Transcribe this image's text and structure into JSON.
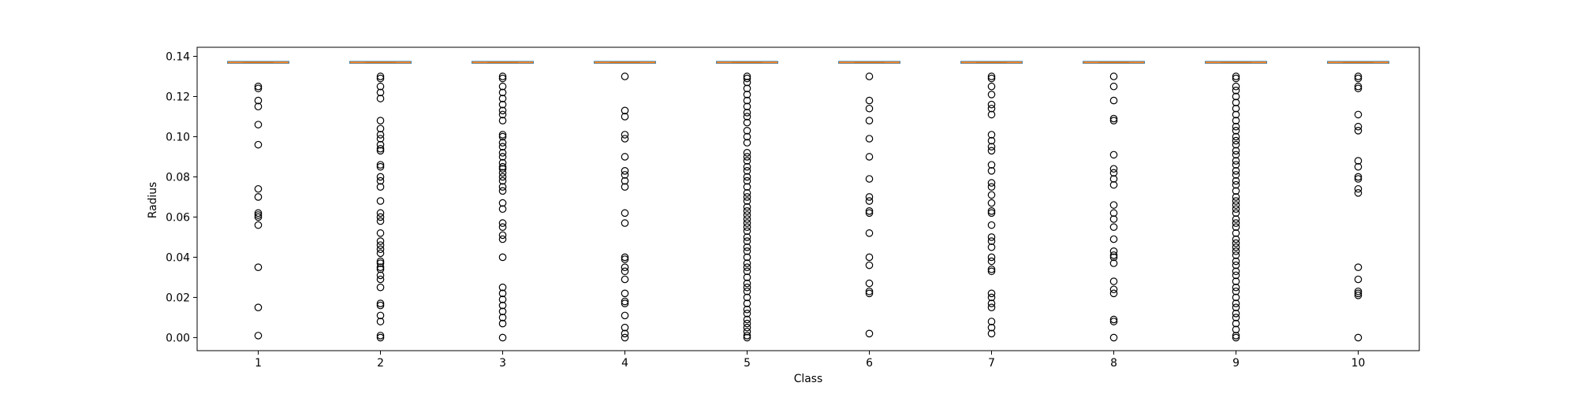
{
  "chart_data": {
    "type": "box",
    "title": "",
    "xlabel": "Class",
    "ylabel": "Radius",
    "ylim": [
      -0.0065,
      0.1445
    ],
    "yticks": [
      0.0,
      0.02,
      0.04,
      0.06,
      0.08,
      0.1,
      0.12,
      0.14
    ],
    "ytick_labels": [
      "0.00",
      "0.02",
      "0.04",
      "0.06",
      "0.08",
      "0.10",
      "0.12",
      "0.14"
    ],
    "categories": [
      "1",
      "2",
      "3",
      "4",
      "5",
      "6",
      "7",
      "8",
      "9",
      "10"
    ],
    "grid": false,
    "colors": {
      "box": "#1f77b4",
      "median": "#ff7f0e",
      "flier_edge": "#000000",
      "axes": "#000000"
    },
    "boxes": [
      {
        "label": "1",
        "median": 0.137,
        "q1": 0.137,
        "q3": 0.137,
        "whisker_low": 0.137,
        "whisker_high": 0.137,
        "fliers": [
          0.125,
          0.124,
          0.118,
          0.115,
          0.106,
          0.096,
          0.074,
          0.07,
          0.062,
          0.061,
          0.06,
          0.056,
          0.035,
          0.015,
          0.001
        ]
      },
      {
        "label": "2",
        "median": 0.137,
        "q1": 0.137,
        "q3": 0.137,
        "whisker_low": 0.137,
        "whisker_high": 0.137,
        "fliers": [
          0.13,
          0.129,
          0.125,
          0.122,
          0.119,
          0.108,
          0.104,
          0.101,
          0.099,
          0.096,
          0.094,
          0.093,
          0.086,
          0.085,
          0.08,
          0.078,
          0.075,
          0.068,
          0.062,
          0.06,
          0.058,
          0.052,
          0.048,
          0.046,
          0.044,
          0.042,
          0.038,
          0.037,
          0.035,
          0.034,
          0.031,
          0.029,
          0.025,
          0.017,
          0.016,
          0.011,
          0.008,
          0.001,
          0.0
        ]
      },
      {
        "label": "3",
        "median": 0.137,
        "q1": 0.137,
        "q3": 0.137,
        "whisker_low": 0.137,
        "whisker_high": 0.137,
        "fliers": [
          0.13,
          0.129,
          0.125,
          0.122,
          0.119,
          0.116,
          0.113,
          0.111,
          0.108,
          0.101,
          0.1,
          0.097,
          0.095,
          0.092,
          0.09,
          0.087,
          0.085,
          0.084,
          0.082,
          0.08,
          0.078,
          0.075,
          0.073,
          0.067,
          0.064,
          0.057,
          0.055,
          0.051,
          0.049,
          0.04,
          0.025,
          0.022,
          0.019,
          0.016,
          0.013,
          0.01,
          0.007,
          0.0
        ]
      },
      {
        "label": "4",
        "median": 0.137,
        "q1": 0.137,
        "q3": 0.137,
        "whisker_low": 0.137,
        "whisker_high": 0.137,
        "fliers": [
          0.13,
          0.113,
          0.11,
          0.101,
          0.099,
          0.09,
          0.083,
          0.081,
          0.078,
          0.075,
          0.062,
          0.057,
          0.04,
          0.039,
          0.035,
          0.033,
          0.029,
          0.022,
          0.018,
          0.017,
          0.011,
          0.005,
          0.002,
          0.0
        ]
      },
      {
        "label": "5",
        "median": 0.137,
        "q1": 0.137,
        "q3": 0.137,
        "whisker_low": 0.137,
        "whisker_high": 0.137,
        "fliers": [
          0.13,
          0.129,
          0.127,
          0.124,
          0.121,
          0.118,
          0.115,
          0.112,
          0.11,
          0.107,
          0.103,
          0.1,
          0.097,
          0.092,
          0.09,
          0.088,
          0.085,
          0.083,
          0.08,
          0.078,
          0.075,
          0.072,
          0.07,
          0.068,
          0.065,
          0.063,
          0.061,
          0.059,
          0.057,
          0.055,
          0.053,
          0.05,
          0.048,
          0.045,
          0.043,
          0.04,
          0.037,
          0.035,
          0.033,
          0.03,
          0.027,
          0.025,
          0.023,
          0.02,
          0.017,
          0.014,
          0.012,
          0.009,
          0.007,
          0.005,
          0.003,
          0.001,
          0.0
        ]
      },
      {
        "label": "6",
        "median": 0.137,
        "q1": 0.137,
        "q3": 0.137,
        "whisker_low": 0.137,
        "whisker_high": 0.137,
        "fliers": [
          0.13,
          0.118,
          0.114,
          0.108,
          0.099,
          0.09,
          0.079,
          0.07,
          0.068,
          0.063,
          0.062,
          0.052,
          0.04,
          0.036,
          0.027,
          0.023,
          0.022,
          0.002
        ]
      },
      {
        "label": "7",
        "median": 0.137,
        "q1": 0.137,
        "q3": 0.137,
        "whisker_low": 0.137,
        "whisker_high": 0.137,
        "fliers": [
          0.13,
          0.129,
          0.125,
          0.121,
          0.116,
          0.114,
          0.111,
          0.101,
          0.098,
          0.095,
          0.093,
          0.086,
          0.083,
          0.077,
          0.075,
          0.071,
          0.067,
          0.063,
          0.062,
          0.056,
          0.05,
          0.048,
          0.045,
          0.04,
          0.038,
          0.034,
          0.033,
          0.022,
          0.02,
          0.017,
          0.015,
          0.008,
          0.005,
          0.002
        ]
      },
      {
        "label": "8",
        "median": 0.137,
        "q1": 0.137,
        "q3": 0.137,
        "whisker_low": 0.137,
        "whisker_high": 0.137,
        "fliers": [
          0.13,
          0.125,
          0.118,
          0.109,
          0.108,
          0.091,
          0.084,
          0.082,
          0.079,
          0.076,
          0.066,
          0.062,
          0.059,
          0.055,
          0.049,
          0.043,
          0.041,
          0.04,
          0.037,
          0.028,
          0.024,
          0.022,
          0.009,
          0.008,
          0.0
        ]
      },
      {
        "label": "9",
        "median": 0.137,
        "q1": 0.137,
        "q3": 0.137,
        "whisker_low": 0.137,
        "whisker_high": 0.137,
        "fliers": [
          0.13,
          0.129,
          0.125,
          0.123,
          0.12,
          0.117,
          0.114,
          0.111,
          0.108,
          0.105,
          0.103,
          0.1,
          0.098,
          0.096,
          0.093,
          0.091,
          0.088,
          0.086,
          0.083,
          0.081,
          0.078,
          0.076,
          0.073,
          0.07,
          0.068,
          0.066,
          0.064,
          0.062,
          0.059,
          0.057,
          0.055,
          0.052,
          0.049,
          0.047,
          0.045,
          0.043,
          0.041,
          0.038,
          0.036,
          0.033,
          0.031,
          0.028,
          0.025,
          0.023,
          0.02,
          0.017,
          0.015,
          0.012,
          0.01,
          0.007,
          0.004,
          0.001,
          0.0
        ]
      },
      {
        "label": "10",
        "median": 0.137,
        "q1": 0.137,
        "q3": 0.137,
        "whisker_low": 0.137,
        "whisker_high": 0.137,
        "fliers": [
          0.13,
          0.129,
          0.125,
          0.124,
          0.111,
          0.105,
          0.103,
          0.088,
          0.085,
          0.08,
          0.079,
          0.074,
          0.072,
          0.035,
          0.029,
          0.023,
          0.022,
          0.021,
          0.0
        ]
      }
    ]
  }
}
